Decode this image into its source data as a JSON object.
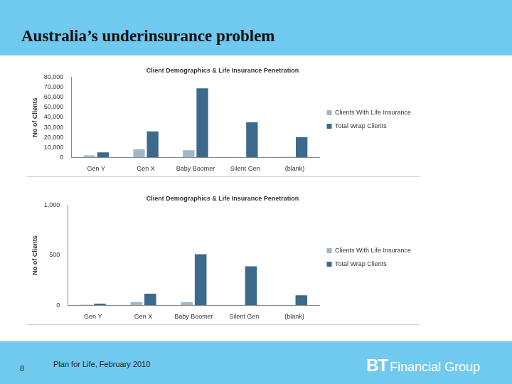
{
  "title": "Australia’s underinsurance problem",
  "footer": {
    "page": "8",
    "source": "Plan for Life, February 2010",
    "logo_mark": "BT",
    "logo_text": "Financial Group"
  },
  "chart_data": [
    {
      "type": "bar",
      "title": "Client Demographics & Life Insurance Penetration",
      "ylabel": "No of Clients",
      "categories": [
        "Gen Y",
        "Gen X",
        "Baby Boomer",
        "Silent Gen",
        "(blank)"
      ],
      "series": [
        {
          "name": "Clients With Life Insurance",
          "color": "#9fb6cb",
          "values": [
            2000,
            8000,
            7000,
            0,
            500
          ]
        },
        {
          "name": "Total Wrap Clients",
          "color": "#3b6a8c",
          "values": [
            5000,
            26000,
            69000,
            35000,
            20000
          ]
        }
      ],
      "ylim": [
        0,
        80000
      ],
      "yticks": [
        0,
        {
          "value": 10000,
          "label": "10,000"
        },
        {
          "value": 20000,
          "label": "20,000"
        },
        {
          "value": 30000,
          "label": "30,000"
        },
        {
          "value": 40000,
          "label": "40,000"
        },
        {
          "value": 50000,
          "label": "50,000"
        },
        {
          "value": 60000,
          "label": "60,000"
        },
        {
          "value": 70000,
          "label": "70,000"
        },
        {
          "value": 80000,
          "label": "80,000"
        }
      ],
      "grid": false,
      "legend": "right"
    },
    {
      "type": "bar",
      "title": "Client Demographics & Life Insurance Penetration",
      "ylabel": "No of Clients",
      "categories": [
        "Gen Y",
        "Gen X",
        "Baby Boomer",
        "Silent Gen",
        "(blank)"
      ],
      "series": [
        {
          "name": "Clients With Life Insurance",
          "color": "#9fb6cb",
          "values": [
            5,
            30,
            30,
            0,
            0
          ]
        },
        {
          "name": "Total Wrap Clients",
          "color": "#3b6a8c",
          "values": [
            15,
            115,
            510,
            390,
            100
          ]
        }
      ],
      "ylim": [
        0,
        1000
      ],
      "yticks": [
        0,
        500,
        {
          "value": 1000,
          "label": "1,000"
        }
      ],
      "grid": false,
      "legend": "right"
    }
  ]
}
